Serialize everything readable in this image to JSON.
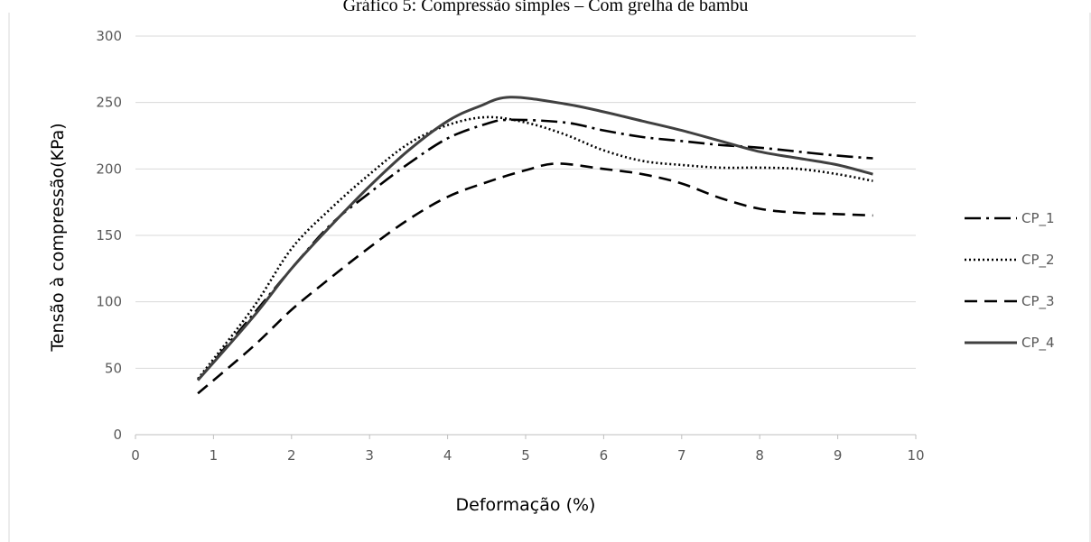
{
  "chart_data": {
    "type": "line",
    "title": "Gráfico 5: Compressão simples – Com grelha de bambu",
    "xlabel": "Deformação (%)",
    "ylabel": "Tensão à compressão(KPa)",
    "xlim": [
      0,
      10
    ],
    "ylim": [
      0,
      300
    ],
    "x_ticks": [
      "0",
      "1",
      "2",
      "3",
      "4",
      "5",
      "6",
      "7",
      "8",
      "9",
      "10"
    ],
    "y_ticks": [
      "0",
      "50",
      "100",
      "150",
      "200",
      "250",
      "300"
    ],
    "grid": "horizontal",
    "legend_position": "right",
    "series": [
      {
        "name": "CP_1",
        "color": "#000000",
        "dash": "dash-dot",
        "x": [
          0.8,
          1.5,
          2.0,
          2.5,
          3.0,
          3.5,
          4.0,
          4.5,
          4.8,
          5.5,
          6.0,
          6.5,
          7.0,
          7.5,
          8.0,
          8.5,
          9.0,
          9.45
        ],
        "y": [
          41,
          90,
          125,
          158,
          182,
          204,
          223,
          234,
          237,
          235,
          229,
          224,
          221,
          218,
          216,
          213,
          210,
          208
        ]
      },
      {
        "name": "CP_2",
        "color": "#000000",
        "dash": "dotted",
        "x": [
          0.8,
          1.5,
          2.0,
          2.5,
          3.0,
          3.5,
          4.0,
          4.5,
          5.0,
          5.5,
          6.0,
          6.5,
          7.0,
          7.5,
          8.0,
          8.5,
          9.0,
          9.45
        ],
        "y": [
          42,
          95,
          140,
          170,
          196,
          219,
          233,
          239,
          235,
          226,
          214,
          206,
          203,
          201,
          201,
          200,
          196,
          191
        ]
      },
      {
        "name": "CP_3",
        "color": "#000000",
        "dash": "dashed",
        "x": [
          0.8,
          1.5,
          2.0,
          2.5,
          3.0,
          3.5,
          4.0,
          4.5,
          5.0,
          5.4,
          6.0,
          6.5,
          7.0,
          7.5,
          8.0,
          8.5,
          9.0,
          9.45
        ],
        "y": [
          31,
          66,
          94,
          118,
          141,
          162,
          179,
          190,
          199,
          204,
          200,
          196,
          189,
          178,
          170,
          167,
          166,
          165
        ]
      },
      {
        "name": "CP_4",
        "color": "#404040",
        "dash": "solid",
        "x": [
          0.8,
          1.5,
          2.0,
          2.5,
          3.0,
          3.5,
          4.0,
          4.4,
          4.8,
          5.5,
          6.0,
          6.5,
          7.0,
          7.5,
          8.0,
          8.5,
          9.0,
          9.45
        ],
        "y": [
          41,
          88,
          125,
          157,
          187,
          214,
          236,
          247,
          254,
          249,
          243,
          236,
          229,
          221,
          213,
          208,
          203,
          196
        ]
      }
    ]
  }
}
